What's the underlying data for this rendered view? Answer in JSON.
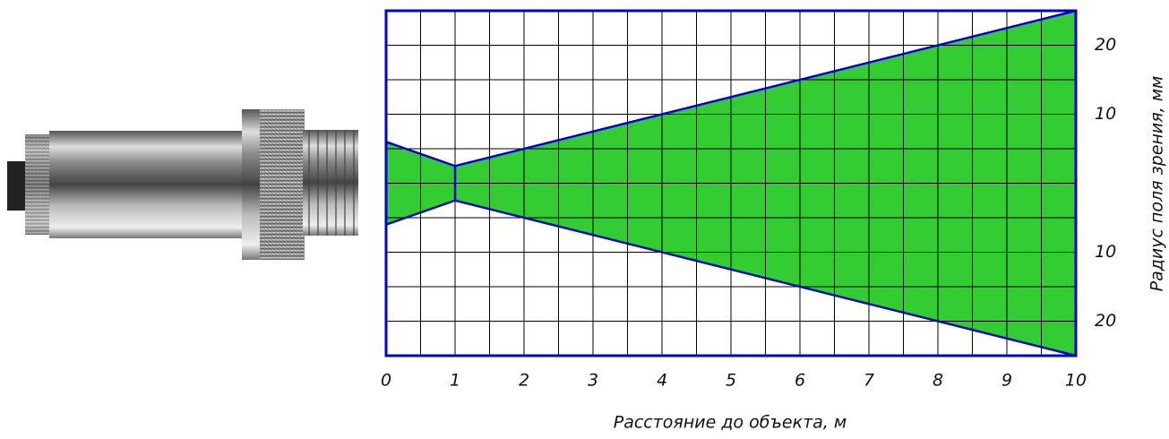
{
  "chart_data": {
    "type": "area_band",
    "x_label": "Расстояние до объекта, м",
    "y_label": "Радиус поля зрения, мм",
    "x": [
      0,
      1,
      10
    ],
    "upper": [
      6,
      2.5,
      25
    ],
    "lower": [
      -6,
      -2.5,
      -25
    ],
    "color": "#33cc33",
    "line_color": "#0000cc",
    "xlim": [
      0,
      10
    ],
    "xticks": [
      0,
      1,
      2,
      3,
      4,
      5,
      6,
      7,
      8,
      9,
      10
    ],
    "ylim": [
      -25,
      25
    ],
    "yticks": [
      {
        "value": -20,
        "label": "20"
      },
      {
        "value": -10,
        "label": "10"
      },
      {
        "value": 10,
        "label": "10"
      },
      {
        "value": 20,
        "label": "20"
      }
    ],
    "grid": true,
    "minor_grid": true
  }
}
